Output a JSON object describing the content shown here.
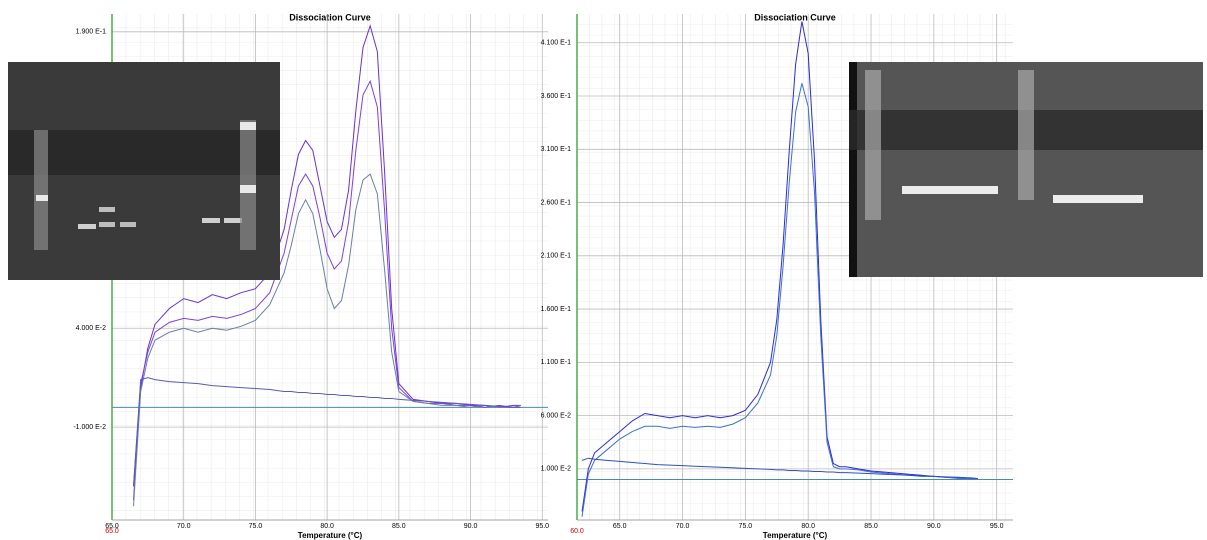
{
  "chart_data": [
    {
      "type": "line",
      "title": "Dissociation Curve",
      "x_label": "Temperature (°C)",
      "x_start_label": "65.0",
      "xlim": [
        65,
        95.4
      ],
      "ylim": [
        -0.057,
        0.199
      ],
      "grid": true,
      "baseline": 0,
      "xticks": [
        {
          "value": 65,
          "label": "65.0"
        },
        {
          "value": 70,
          "label": "70.0"
        },
        {
          "value": 75,
          "label": "75.0"
        },
        {
          "value": 80,
          "label": "80.0"
        },
        {
          "value": 85,
          "label": "85.0"
        },
        {
          "value": 90,
          "label": "90.0"
        },
        {
          "value": 95,
          "label": "95.0"
        }
      ],
      "yticks": [
        {
          "value": 0.19,
          "label": "1.900 E-1"
        },
        {
          "value": 0.04,
          "label": "4.000 E-2"
        },
        {
          "value": -0.01,
          "label": "-1.000 E-2"
        }
      ],
      "x": [
        66.5,
        67,
        67.5,
        68,
        69,
        70,
        71,
        72,
        73,
        74,
        75,
        76,
        77,
        77.5,
        78,
        78.5,
        79,
        79.5,
        80,
        80.5,
        81,
        81.5,
        82,
        82.5,
        83,
        83.5,
        84,
        84.5,
        85,
        86,
        87,
        88,
        89,
        90,
        91,
        92,
        93,
        93.5
      ],
      "series": [
        {
          "color": "#6a2fd0",
          "values": [
            -0.047,
            0.01,
            0.03,
            0.042,
            0.05,
            0.055,
            0.053,
            0.057,
            0.055,
            0.058,
            0.06,
            0.068,
            0.09,
            0.11,
            0.128,
            0.135,
            0.13,
            0.112,
            0.094,
            0.086,
            0.09,
            0.11,
            0.15,
            0.182,
            0.193,
            0.18,
            0.12,
            0.05,
            0.012,
            0.004,
            0.003,
            0.002,
            0.002,
            0.001,
            0.001,
            0.0,
            0.001,
            0.001
          ]
        },
        {
          "color": "#7b3fe0",
          "values": [
            -0.04,
            0.012,
            0.028,
            0.038,
            0.043,
            0.045,
            0.044,
            0.046,
            0.045,
            0.047,
            0.05,
            0.058,
            0.078,
            0.095,
            0.112,
            0.118,
            0.112,
            0.096,
            0.078,
            0.07,
            0.074,
            0.094,
            0.13,
            0.158,
            0.165,
            0.152,
            0.1,
            0.04,
            0.01,
            0.003,
            0.002,
            0.002,
            0.001,
            0.001,
            0.0,
            0.001,
            0.0,
            0.001
          ]
        },
        {
          "color": "#6b7ea8",
          "values": [
            -0.05,
            0.008,
            0.025,
            0.034,
            0.038,
            0.04,
            0.038,
            0.04,
            0.039,
            0.041,
            0.044,
            0.052,
            0.068,
            0.082,
            0.098,
            0.105,
            0.098,
            0.08,
            0.06,
            0.05,
            0.054,
            0.072,
            0.1,
            0.115,
            0.118,
            0.108,
            0.07,
            0.028,
            0.008,
            0.003,
            0.002,
            0.001,
            0.001,
            0.0,
            0.001,
            0.0,
            0.0,
            0.001
          ]
        },
        {
          "color": "#5a5ab8",
          "values": [
            -0.04,
            0.014,
            0.015,
            0.014,
            0.013,
            0.0125,
            0.012,
            0.011,
            0.0105,
            0.01,
            0.0095,
            0.009,
            0.008,
            0.008,
            0.0075,
            0.0075,
            0.007,
            0.007,
            0.0065,
            0.0065,
            0.006,
            0.006,
            0.0055,
            0.0055,
            0.005,
            0.005,
            0.0045,
            0.0045,
            0.004,
            0.0035,
            0.003,
            0.0025,
            0.002,
            0.0015,
            0.001,
            0.0005,
            0.0,
            0.0
          ]
        }
      ]
    },
    {
      "type": "line",
      "title": "Dissociation Curve",
      "x_label": "Temperature (°C)",
      "x_start_label": "60.0",
      "xlim": [
        61.6,
        96.3
      ],
      "ylim": [
        -0.038,
        0.437
      ],
      "grid": true,
      "baseline": 0,
      "xticks": [
        {
          "value": 65,
          "label": "65.0"
        },
        {
          "value": 70,
          "label": "70.0"
        },
        {
          "value": 75,
          "label": "75.0"
        },
        {
          "value": 80,
          "label": "80.0"
        },
        {
          "value": 85,
          "label": "85.0"
        },
        {
          "value": 90,
          "label": "90.0"
        },
        {
          "value": 95,
          "label": "95.0"
        }
      ],
      "yticks": [
        {
          "value": 0.41,
          "label": "4.100 E-1"
        },
        {
          "value": 0.36,
          "label": "3.600 E-1"
        },
        {
          "value": 0.31,
          "label": "3.100 E-1"
        },
        {
          "value": 0.26,
          "label": "2.600 E-1"
        },
        {
          "value": 0.21,
          "label": "2.100 E-1"
        },
        {
          "value": 0.16,
          "label": "1.600 E-1"
        },
        {
          "value": 0.11,
          "label": "1.100 E-1"
        },
        {
          "value": 0.06,
          "label": "6.000 E-2"
        },
        {
          "value": 0.01,
          "label": "1.000 E-2"
        }
      ],
      "x": [
        62,
        62.5,
        63,
        64,
        65,
        66,
        67,
        68,
        69,
        70,
        71,
        72,
        73,
        74,
        75,
        76,
        77,
        77.5,
        78,
        78.5,
        79,
        79.5,
        80,
        80.5,
        81,
        81.5,
        82,
        82.5,
        83,
        84,
        85,
        86,
        87,
        88,
        89,
        90,
        91,
        92,
        93,
        93.5
      ],
      "series": [
        {
          "color": "#2a2ad8",
          "values": [
            -0.03,
            0.01,
            0.025,
            0.035,
            0.045,
            0.055,
            0.062,
            0.06,
            0.058,
            0.06,
            0.058,
            0.06,
            0.058,
            0.06,
            0.065,
            0.08,
            0.11,
            0.15,
            0.22,
            0.31,
            0.39,
            0.43,
            0.4,
            0.3,
            0.15,
            0.04,
            0.015,
            0.012,
            0.012,
            0.01,
            0.008,
            0.007,
            0.006,
            0.005,
            0.004,
            0.003,
            0.002,
            0.002,
            0.001,
            0.001
          ]
        },
        {
          "color": "#3b6fd0",
          "values": [
            -0.035,
            0.005,
            0.018,
            0.028,
            0.038,
            0.045,
            0.05,
            0.05,
            0.048,
            0.05,
            0.049,
            0.05,
            0.049,
            0.052,
            0.058,
            0.072,
            0.098,
            0.135,
            0.2,
            0.28,
            0.345,
            0.372,
            0.35,
            0.27,
            0.135,
            0.035,
            0.012,
            0.01,
            0.01,
            0.009,
            0.007,
            0.006,
            0.005,
            0.004,
            0.003,
            0.003,
            0.002,
            0.001,
            0.001,
            0.001
          ]
        },
        {
          "color": "#3050c0",
          "values": [
            0.018,
            0.02,
            0.019,
            0.018,
            0.017,
            0.016,
            0.015,
            0.014,
            0.0135,
            0.013,
            0.0125,
            0.012,
            0.0115,
            0.011,
            0.0105,
            0.01,
            0.0095,
            0.009,
            0.009,
            0.0085,
            0.0085,
            0.008,
            0.008,
            0.0075,
            0.0075,
            0.007,
            0.007,
            0.0065,
            0.0065,
            0.006,
            0.0055,
            0.005,
            0.0045,
            0.004,
            0.0035,
            0.003,
            0.0025,
            0.002,
            0.0015,
            0.001
          ]
        }
      ]
    }
  ]
}
